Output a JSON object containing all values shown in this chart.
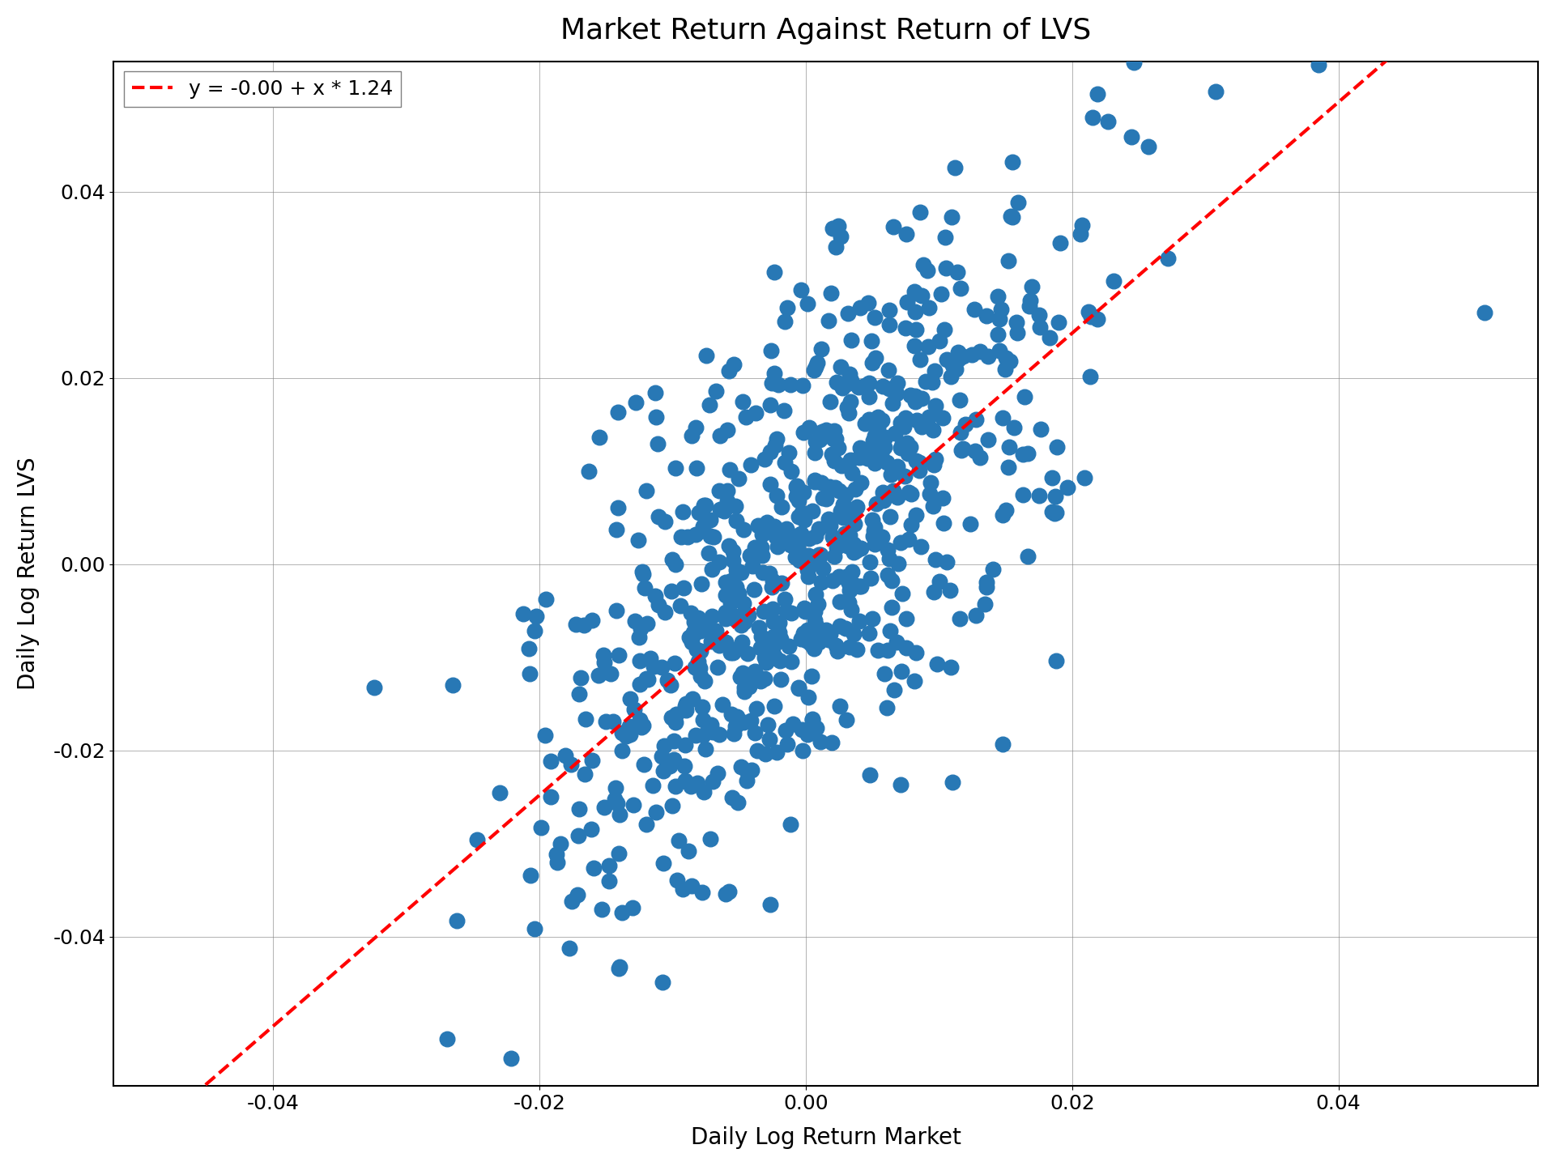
{
  "title": "Market Return Against Return of LVS",
  "xlabel": "Daily Log Return Market",
  "ylabel": "Daily Log Return LVS",
  "legend_label": "y = -0.00 + x * 1.24",
  "intercept": 0.0,
  "slope": 1.24,
  "xlim": [
    -0.052,
    0.055
  ],
  "ylim": [
    -0.056,
    0.054
  ],
  "xticks": [
    -0.04,
    -0.02,
    0.0,
    0.02,
    0.04
  ],
  "yticks": [
    -0.04,
    -0.02,
    0.0,
    0.02,
    0.04
  ],
  "dot_color": "#2878b5",
  "line_color": "#ff0000",
  "dot_size": 180,
  "random_seed": 42,
  "n_points": 750,
  "market_std": 0.01,
  "noise_std": 0.013,
  "title_fontsize": 26,
  "label_fontsize": 20,
  "tick_fontsize": 18,
  "legend_fontsize": 18
}
